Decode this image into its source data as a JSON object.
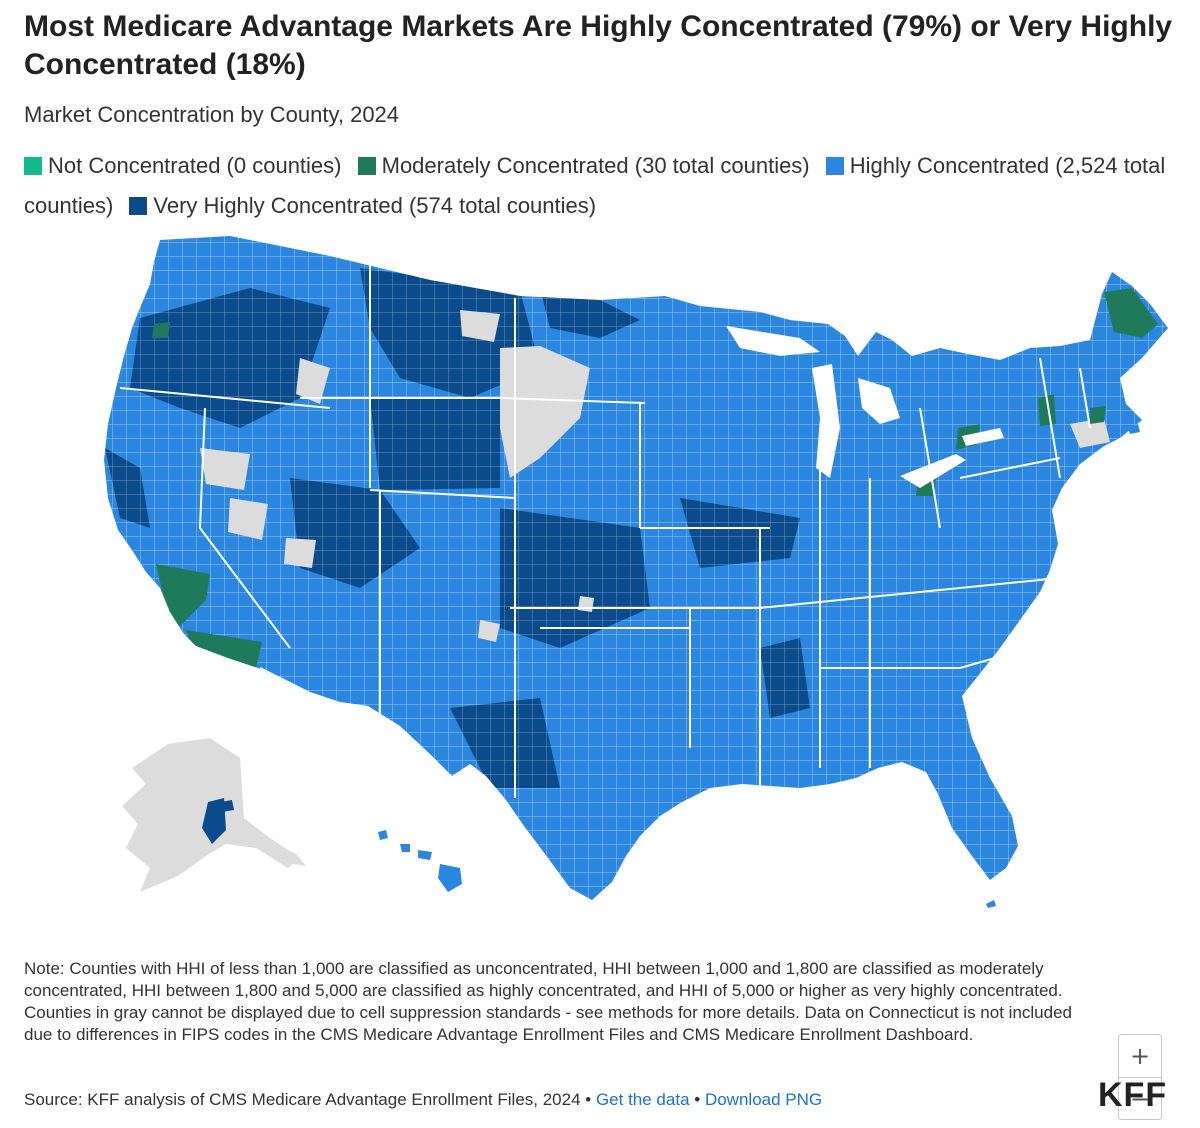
{
  "title": "Most Medicare Advantage Markets Are Highly Concentrated (79%) or Very Highly Concentrated (18%)",
  "subtitle": "Market Concentration by County, 2024",
  "legend": [
    {
      "label": "Not Concentrated (0 counties)",
      "color": "#11b98d"
    },
    {
      "label": "Moderately Concentrated (30 total counties)",
      "color": "#1f7a5c"
    },
    {
      "label": "Highly Concentrated (2,524 total counties)",
      "color": "#2a86de"
    },
    {
      "label": "Very Highly Concentrated (574 total counties)",
      "color": "#0b4a8b"
    }
  ],
  "colors": {
    "suppressed_gray": "#dcdcdc",
    "border": "#ffffff"
  },
  "zoom": {
    "in_label": "+",
    "out_label": "−"
  },
  "note": "Note: Counties with HHI of less than 1,000 are classified as unconcentrated, HHI between 1,000 and 1,800 are classified as moderately concentrated, HHI between 1,800 and 5,000 are classified as highly concentrated, and HHI of 5,000 or higher as very highly concentrated. Counties in gray cannot be displayed due to cell suppression standards - see methods for more details. Data on Connecticut is not included due to differences in FIPS codes in the CMS Medicare Advantage Enrollment Files and CMS Medicare Enrollment Dashboard.",
  "source": {
    "text": "Source: KFF analysis of CMS Medicare Advantage Enrollment Files, 2024 •",
    "get_data": "Get the data",
    "separator": "•",
    "download": "Download PNG"
  },
  "logo": "KFF"
}
